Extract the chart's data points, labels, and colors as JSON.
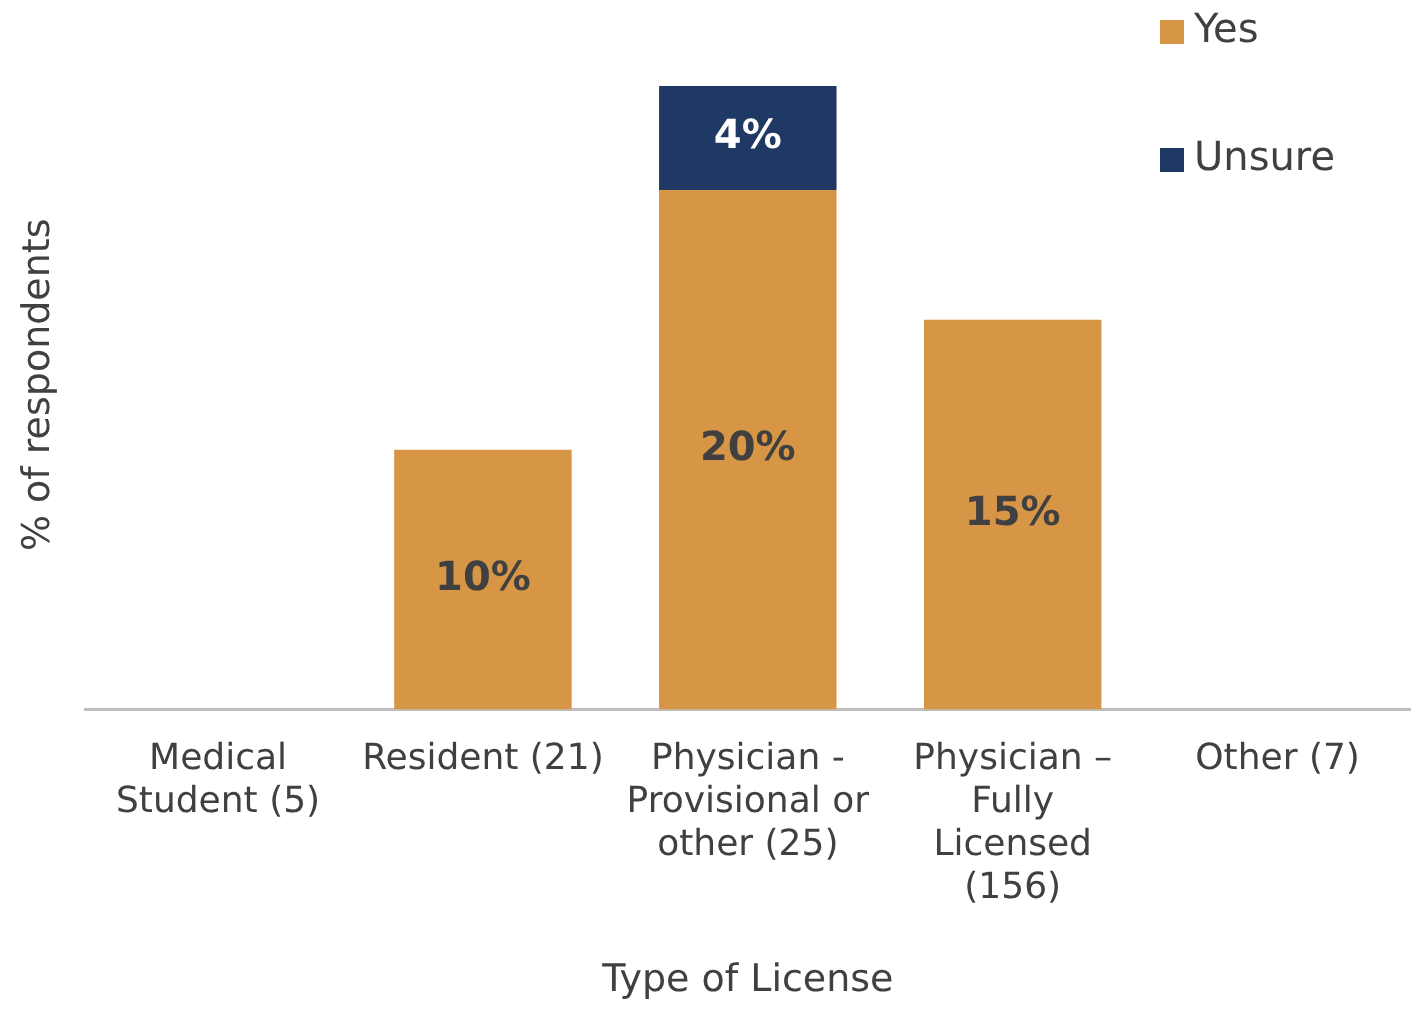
{
  "chart_data": {
    "type": "bar",
    "stacked": true,
    "xlabel": "Type of License",
    "ylabel": "% of respondents",
    "categories": [
      "Medical Student (5)",
      "Resident (21)",
      "Physician - Provisional or other (25)",
      "Physician – Fully Licensed (156)",
      "Other (7)"
    ],
    "series": [
      {
        "name": "Yes",
        "color": "#d79546",
        "values": [
          null,
          10,
          20,
          15,
          null
        ],
        "value_labels": [
          null,
          "10%",
          "20%",
          "15%",
          null
        ]
      },
      {
        "name": "Unsure",
        "color": "#1f3864",
        "values": [
          null,
          null,
          4,
          null,
          null
        ],
        "value_labels": [
          null,
          null,
          "4%",
          null,
          null
        ]
      }
    ],
    "legend": "top right",
    "grid": false
  }
}
